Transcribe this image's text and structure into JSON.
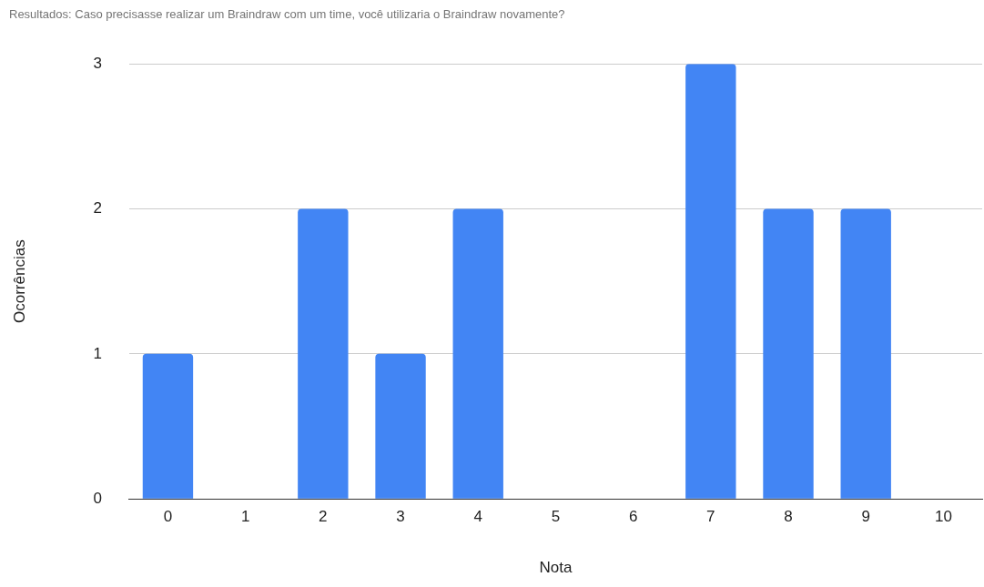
{
  "chart_data": {
    "type": "bar",
    "title": "Resultados: Caso precisasse realizar um Braindraw com um time, você utilizaria o Braindraw novamente?",
    "xlabel": "Nota",
    "ylabel": "Ocorrências",
    "categories": [
      "0",
      "1",
      "2",
      "3",
      "4",
      "5",
      "6",
      "7",
      "8",
      "9",
      "10"
    ],
    "values": [
      1,
      0,
      2,
      1,
      2,
      0,
      0,
      3,
      2,
      2,
      0
    ],
    "color": "#4285f4",
    "ylim": [
      0,
      3
    ],
    "yticks": [
      0,
      1,
      2,
      3
    ],
    "grid": "y",
    "legend": false
  }
}
